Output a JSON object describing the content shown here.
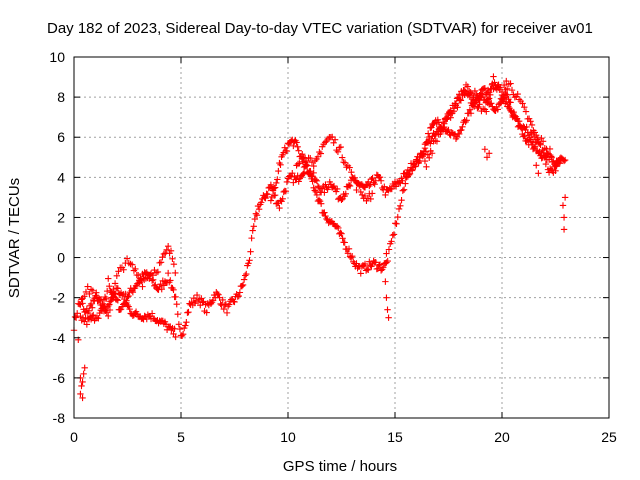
{
  "chart_data": {
    "type": "scatter",
    "title": "Day 182 of 2023, Sidereal Day-to-day VTEC variation (SDTVAR) for receiver av01",
    "xlabel": "GPS time / hours",
    "ylabel": "SDTVAR / TECUs",
    "xlim": [
      0,
      25
    ],
    "ylim": [
      -8,
      10
    ],
    "xticks": [
      "0",
      "5",
      "10",
      "15",
      "20",
      "25"
    ],
    "yticks": [
      "-8",
      "-6",
      "-4",
      "-2",
      "0",
      "2",
      "4",
      "6",
      "8",
      "10"
    ],
    "grid": true,
    "marker": "+",
    "color": "#ff0000",
    "series": [
      {
        "name": "SDTVAR",
        "trace_x": [
          0.0,
          0.2,
          0.35,
          0.5,
          0.7,
          0.9,
          1.1,
          1.3,
          1.5,
          1.6,
          1.7,
          1.8,
          2.0,
          2.2,
          2.4,
          2.6,
          2.8,
          3.0,
          3.2,
          3.4,
          3.6,
          3.8,
          4.0,
          4.2,
          4.4,
          4.5,
          4.6,
          4.7,
          4.8,
          4.9,
          5.0,
          5.2,
          5.4,
          5.6,
          5.8,
          6.0,
          6.2,
          6.4,
          6.6,
          6.8,
          7.0,
          7.2,
          7.4,
          7.6,
          7.8,
          8.0,
          8.2,
          8.4,
          8.6,
          8.8,
          9.0,
          9.2,
          9.4,
          9.6,
          9.8,
          10.0,
          10.2,
          10.4,
          10.6,
          10.8,
          11.0,
          11.2,
          11.4,
          11.6,
          11.8,
          12.0,
          12.2,
          12.4,
          12.6,
          12.8,
          13.0,
          13.2,
          13.4,
          13.6,
          13.8,
          14.0,
          14.2,
          14.4,
          14.6,
          14.8,
          15.0,
          15.2,
          15.4,
          15.6,
          15.8,
          16.0,
          16.2,
          16.4,
          16.6,
          16.8,
          17.0,
          17.2,
          17.4,
          17.6,
          17.8,
          18.0,
          18.2,
          18.4,
          18.6,
          18.8,
          19.0,
          19.2,
          19.4,
          19.6,
          19.8,
          20.0,
          20.2,
          20.4,
          20.6,
          20.8,
          21.0,
          21.2,
          21.4,
          21.6,
          21.8,
          22.0,
          22.2,
          22.4,
          22.6,
          22.8,
          23.0
        ],
        "trace_y": [
          -3.4,
          -2.4,
          -2.2,
          -2.8,
          -2.6,
          -2.2,
          -2.0,
          -2.6,
          -2.0,
          -1.2,
          -1.5,
          -1.8,
          -2.2,
          -2.6,
          -2.0,
          -1.8,
          -1.5,
          -1.2,
          -1.0,
          -0.8,
          -1.0,
          -1.4,
          -1.6,
          -1.2,
          -1.0,
          -1.2,
          -1.5,
          -1.8,
          -2.5,
          -3.5,
          -4.0,
          -3.2,
          -2.4,
          -2.2,
          -2.0,
          -2.3,
          -2.6,
          -2.2,
          -1.8,
          -2.0,
          -2.4,
          -2.6,
          -2.2,
          -2.0,
          -1.6,
          -1.0,
          0.0,
          1.5,
          2.5,
          2.8,
          3.2,
          3.6,
          3.0,
          2.6,
          3.2,
          3.8,
          4.0,
          3.8,
          4.2,
          4.5,
          4.3,
          4.0,
          3.6,
          3.3,
          3.5,
          3.8,
          3.4,
          3.0,
          3.2,
          3.4,
          3.8,
          3.8,
          3.6,
          3.4,
          3.6,
          3.8,
          4.0,
          3.6,
          3.2,
          3.4,
          3.6,
          3.8,
          4.0,
          4.2,
          4.6,
          4.8,
          5.0,
          5.4,
          5.8,
          6.0,
          6.2,
          6.6,
          7.0,
          7.2,
          7.6,
          8.0,
          8.2,
          8.0,
          7.8,
          7.6,
          7.8,
          8.0,
          7.8,
          7.6,
          7.4,
          7.8,
          8.0,
          7.6,
          7.0,
          6.8,
          6.6,
          6.4,
          6.0,
          5.8,
          5.4,
          5.2,
          5.0,
          4.8,
          4.6,
          4.8,
          4.6
        ],
        "trace_x2": [
          0.3,
          0.6,
          0.9,
          1.2,
          1.4,
          1.6,
          1.8,
          2.0,
          2.2,
          2.4,
          2.6,
          2.8,
          3.0,
          3.2,
          3.4,
          3.6,
          3.8,
          4.0,
          4.2,
          4.4,
          4.6,
          4.8,
          9.2,
          9.4,
          9.6,
          9.8,
          10.0,
          10.2,
          10.4,
          10.6,
          10.8,
          11.0,
          11.2,
          11.4,
          11.6,
          11.8,
          12.0,
          12.2,
          12.4,
          12.6,
          12.8,
          13.0,
          13.2,
          13.4,
          13.6,
          13.8,
          14.0,
          14.2,
          14.4,
          14.6,
          15.6,
          15.8,
          16.0,
          16.2,
          16.4,
          16.6,
          16.8,
          17.0,
          17.2,
          17.4,
          17.6,
          17.8,
          18.0,
          18.2,
          18.4,
          18.6,
          18.8,
          19.0,
          19.2,
          19.4,
          19.6,
          19.8,
          20.0,
          20.2,
          20.4,
          20.6,
          20.8,
          21.0,
          21.2,
          21.4,
          21.6,
          21.8,
          22.0,
          22.2,
          22.4,
          22.6,
          22.8
        ],
        "trace_y2": [
          -3.0,
          -3.2,
          -3.0,
          -2.8,
          -2.6,
          -2.4,
          -2.0,
          -1.6,
          -1.8,
          -2.2,
          -2.6,
          -2.8,
          -2.9,
          -2.9,
          -2.9,
          -2.9,
          -3.0,
          -3.2,
          -3.3,
          -3.5,
          -3.7,
          -3.8,
          3.0,
          3.4,
          4.6,
          5.2,
          5.6,
          5.8,
          5.6,
          5.0,
          4.6,
          4.2,
          3.6,
          3.0,
          2.4,
          2.0,
          1.8,
          1.6,
          1.2,
          0.8,
          0.4,
          0.0,
          -0.4,
          -0.6,
          -0.5,
          -0.4,
          -0.3,
          -0.4,
          -0.5,
          -0.3,
          4.2,
          4.4,
          4.8,
          5.0,
          5.6,
          6.2,
          6.6,
          6.8,
          6.6,
          6.4,
          6.2,
          6.0,
          6.2,
          6.6,
          7.0,
          7.4,
          7.8,
          8.2,
          8.4,
          8.2,
          8.6,
          8.4,
          8.0,
          7.8,
          7.4,
          7.0,
          6.6,
          6.2,
          5.8,
          5.6,
          5.4,
          5.2,
          5.0,
          4.4,
          4.2,
          4.8,
          5.2
        ],
        "trace_x3": [
          0.4,
          0.8,
          1.2,
          1.6,
          2.0,
          2.4,
          2.8,
          3.2,
          3.6,
          4.0,
          4.4,
          4.6,
          4.8,
          10.4,
          10.8,
          11.2,
          11.6,
          12.0,
          12.4,
          12.8,
          13.2,
          13.6,
          14.0,
          16.4,
          16.8,
          17.2,
          17.6,
          18.0,
          18.4,
          18.8,
          19.2,
          19.6,
          20.0,
          20.4,
          20.8,
          21.2,
          21.6,
          22.0,
          22.4
        ],
        "trace_y3": [
          -1.8,
          -1.6,
          -2.2,
          -2.8,
          -1.0,
          -0.2,
          -0.6,
          -1.2,
          -0.8,
          -0.4,
          0.4,
          0.0,
          -0.8,
          4.8,
          5.2,
          4.4,
          5.6,
          6.0,
          5.4,
          4.6,
          3.6,
          3.0,
          3.2,
          4.6,
          5.6,
          6.4,
          7.2,
          7.8,
          8.6,
          8.0,
          7.2,
          8.8,
          8.2,
          8.6,
          7.8,
          7.0,
          6.0,
          5.6,
          5.0
        ],
        "outliers_x": [
          0.2,
          0.3,
          0.35,
          0.4,
          0.45,
          0.5,
          0.3,
          0.4,
          14.6,
          14.65,
          14.7,
          14.55,
          14.6,
          20.1,
          20.2,
          22.85,
          22.9,
          22.9,
          22.95,
          19.2,
          19.3,
          19.4,
          21.6,
          21.7
        ],
        "outliers_y": [
          -4.1,
          -6.0,
          -6.4,
          -6.2,
          -5.8,
          -5.5,
          -6.8,
          -7.0,
          -2.0,
          -2.6,
          -3.0,
          -1.2,
          0.2,
          8.6,
          8.8,
          2.6,
          2.0,
          1.4,
          3.0,
          5.4,
          5.0,
          5.2,
          4.6,
          4.2
        ]
      }
    ]
  }
}
